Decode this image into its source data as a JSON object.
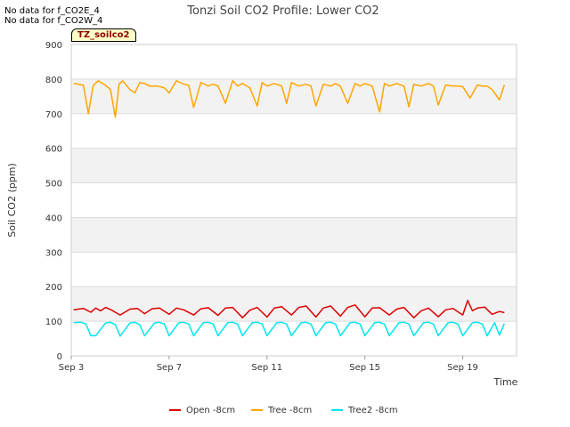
{
  "notes": [
    "No data for f_CO2E_4",
    "No data for f_CO2W_4"
  ],
  "tag_label": "TZ_soilco2",
  "colors": {
    "open": "#dd0000",
    "tree": "#ffa500",
    "tree2": "#00e5ee",
    "band": "#f2f2f2",
    "grid": "#dcdcdc"
  },
  "chart_data": {
    "type": "line",
    "title": "Tonzi Soil CO2 Profile: Lower CO2",
    "xlabel": "Time",
    "ylabel": "Soil CO2 (ppm)",
    "ylim": [
      0,
      900
    ],
    "xlim": [
      0,
      18.2
    ],
    "yticks": [
      0,
      100,
      200,
      300,
      400,
      500,
      600,
      700,
      800,
      900
    ],
    "xticks": [
      {
        "day": 0,
        "label": "Sep 3"
      },
      {
        "day": 4,
        "label": "Sep 7"
      },
      {
        "day": 8,
        "label": "Sep 11"
      },
      {
        "day": 12,
        "label": "Sep 15"
      },
      {
        "day": 16,
        "label": "Sep 19"
      }
    ],
    "x_units": "days since Sep 3",
    "series": [
      {
        "name": "Open -8cm",
        "key": "open",
        "x": [
          0.1,
          0.5,
          0.8,
          1.0,
          1.2,
          1.4,
          1.6,
          2.0,
          2.4,
          2.7,
          3.0,
          3.3,
          3.6,
          4.0,
          4.3,
          4.6,
          5.0,
          5.3,
          5.6,
          6.0,
          6.3,
          6.6,
          7.0,
          7.3,
          7.6,
          8.0,
          8.3,
          8.6,
          9.0,
          9.3,
          9.6,
          10.0,
          10.3,
          10.6,
          11.0,
          11.3,
          11.6,
          12.0,
          12.3,
          12.6,
          13.0,
          13.3,
          13.6,
          14.0,
          14.3,
          14.6,
          15.0,
          15.3,
          15.6,
          16.0,
          16.2,
          16.4,
          16.6,
          16.9,
          17.2,
          17.5,
          17.7
        ],
        "y": [
          133,
          137,
          126,
          138,
          130,
          140,
          134,
          118,
          135,
          137,
          122,
          136,
          138,
          120,
          138,
          133,
          118,
          136,
          139,
          117,
          138,
          140,
          110,
          132,
          140,
          112,
          138,
          142,
          118,
          140,
          144,
          112,
          138,
          144,
          115,
          140,
          147,
          113,
          138,
          139,
          118,
          135,
          140,
          110,
          130,
          138,
          113,
          133,
          137,
          118,
          160,
          130,
          138,
          141,
          120,
          128,
          125
        ]
      },
      {
        "name": "Tree -8cm",
        "key": "tree",
        "x": [
          0.1,
          0.5,
          0.7,
          0.9,
          1.1,
          1.4,
          1.6,
          1.8,
          1.95,
          2.1,
          2.4,
          2.6,
          2.8,
          3.0,
          3.2,
          3.5,
          3.8,
          4.0,
          4.3,
          4.6,
          4.8,
          5.0,
          5.3,
          5.6,
          5.8,
          6.0,
          6.3,
          6.6,
          6.8,
          7.0,
          7.3,
          7.6,
          7.8,
          8.0,
          8.3,
          8.6,
          8.8,
          9.0,
          9.3,
          9.6,
          9.8,
          10.0,
          10.3,
          10.6,
          10.8,
          11.0,
          11.3,
          11.6,
          11.8,
          12.0,
          12.3,
          12.6,
          12.8,
          13.0,
          13.3,
          13.6,
          13.8,
          14.0,
          14.3,
          14.6,
          14.8,
          15.0,
          15.3,
          15.6,
          15.8,
          16.0,
          16.3,
          16.6,
          16.8,
          17.0,
          17.2,
          17.5,
          17.7
        ],
        "y": [
          788,
          782,
          700,
          782,
          795,
          782,
          770,
          690,
          785,
          795,
          770,
          760,
          790,
          787,
          780,
          780,
          775,
          760,
          795,
          785,
          782,
          718,
          790,
          780,
          785,
          780,
          730,
          795,
          780,
          787,
          775,
          722,
          790,
          780,
          787,
          780,
          730,
          790,
          780,
          785,
          780,
          722,
          785,
          780,
          787,
          780,
          730,
          787,
          780,
          787,
          780,
          705,
          787,
          780,
          787,
          780,
          720,
          785,
          780,
          787,
          780,
          725,
          783,
          780,
          780,
          778,
          745,
          783,
          780,
          780,
          770,
          740,
          783
        ]
      },
      {
        "name": "Tree2 -8cm",
        "key": "tree2",
        "x": [
          0.1,
          0.4,
          0.6,
          0.8,
          1.0,
          1.4,
          1.6,
          1.8,
          2.0,
          2.4,
          2.6,
          2.8,
          3.0,
          3.4,
          3.6,
          3.8,
          4.0,
          4.4,
          4.6,
          4.8,
          5.0,
          5.4,
          5.6,
          5.8,
          6.0,
          6.4,
          6.6,
          6.8,
          7.0,
          7.4,
          7.6,
          7.8,
          8.0,
          8.4,
          8.6,
          8.8,
          9.0,
          9.4,
          9.6,
          9.8,
          10.0,
          10.4,
          10.6,
          10.8,
          11.0,
          11.4,
          11.6,
          11.8,
          12.0,
          12.4,
          12.6,
          12.8,
          13.0,
          13.4,
          13.6,
          13.8,
          14.0,
          14.4,
          14.6,
          14.8,
          15.0,
          15.4,
          15.6,
          15.8,
          16.0,
          16.4,
          16.6,
          16.8,
          17.0,
          17.3,
          17.5,
          17.7
        ],
        "y": [
          96,
          97,
          92,
          58,
          58,
          95,
          97,
          90,
          57,
          95,
          97,
          90,
          58,
          95,
          97,
          92,
          58,
          96,
          97,
          92,
          58,
          96,
          97,
          92,
          58,
          96,
          97,
          92,
          58,
          96,
          97,
          92,
          58,
          96,
          97,
          92,
          58,
          96,
          97,
          92,
          58,
          96,
          97,
          92,
          58,
          96,
          97,
          92,
          58,
          96,
          97,
          92,
          58,
          96,
          97,
          92,
          58,
          96,
          97,
          92,
          58,
          96,
          97,
          92,
          58,
          96,
          97,
          92,
          58,
          96,
          60,
          93
        ]
      }
    ]
  }
}
